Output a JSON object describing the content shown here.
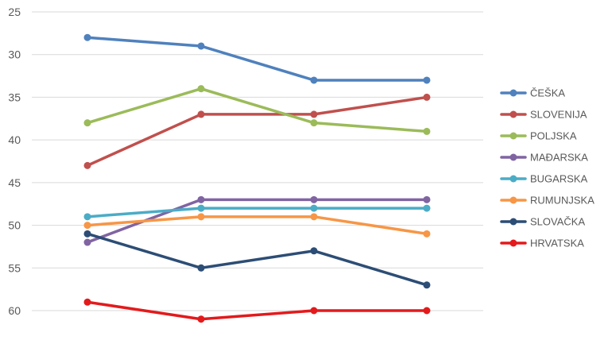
{
  "chart_data": {
    "type": "line",
    "title": "",
    "xlabel": "",
    "ylabel": "",
    "x": [
      1,
      2,
      3,
      4
    ],
    "y_reversed": true,
    "ylim": [
      25,
      62
    ],
    "yticks": [
      25,
      30,
      35,
      40,
      45,
      50,
      55,
      60
    ],
    "grid": "horizontal",
    "legend_position": "right",
    "series": [
      {
        "name": "ČEŠKA",
        "color": "#4f81bd",
        "values": [
          28,
          29,
          33,
          33
        ]
      },
      {
        "name": "SLOVENIJA",
        "color": "#c0504d",
        "values": [
          43,
          37,
          37,
          35
        ]
      },
      {
        "name": "POLJSKA",
        "color": "#9bbb59",
        "values": [
          38,
          34,
          38,
          39
        ]
      },
      {
        "name": "MAĐARSKA",
        "color": "#8064a2",
        "values": [
          52,
          47,
          47,
          47
        ]
      },
      {
        "name": "BUGARSKA",
        "color": "#4bacc6",
        "values": [
          49,
          48,
          48,
          48
        ]
      },
      {
        "name": "RUMUNJSKA",
        "color": "#f79646",
        "values": [
          50,
          49,
          49,
          51
        ]
      },
      {
        "name": "SLOVAČKA",
        "color": "#2c4d75",
        "values": [
          51,
          55,
          53,
          57
        ]
      },
      {
        "name": "HRVATSKA",
        "color": "#e31a1c",
        "values": [
          59,
          61,
          60,
          60
        ]
      }
    ]
  }
}
